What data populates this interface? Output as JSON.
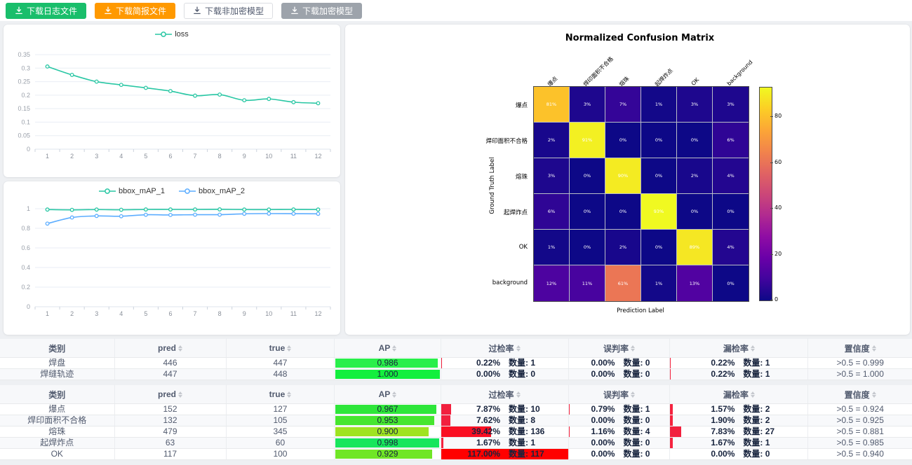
{
  "toolbar": {
    "buttons": [
      {
        "name": "download-log-button",
        "label": "下载日志文件",
        "bg": "#19be6b",
        "fg": "#ffffff",
        "border": "#19be6b"
      },
      {
        "name": "download-report-button",
        "label": "下载简报文件",
        "bg": "#ff9900",
        "fg": "#ffffff",
        "border": "#ff9900"
      },
      {
        "name": "download-plain-model-button",
        "label": "下载非加密模型",
        "bg": "#ffffff",
        "fg": "#515a6e",
        "border": "#dcdee2"
      },
      {
        "name": "download-encrypted-model-button",
        "label": "下载加密模型",
        "bg": "#9da3ab",
        "fg": "#ffffff",
        "border": "#9da3ab"
      }
    ]
  },
  "chart_data": [
    {
      "type": "line",
      "title": "loss",
      "x": [
        1,
        2,
        3,
        4,
        5,
        6,
        7,
        8,
        9,
        10,
        11,
        12
      ],
      "yticks": [
        0,
        0.05,
        0.1,
        0.15,
        0.2,
        0.25,
        0.3,
        0.35
      ],
      "ymax": 0.35,
      "grid": true,
      "legend_position": "top",
      "series": [
        {
          "name": "loss",
          "color": "#29c7a4",
          "values": [
            0.306,
            0.275,
            0.25,
            0.238,
            0.227,
            0.215,
            0.198,
            0.202,
            0.181,
            0.186,
            0.174,
            0.17
          ]
        }
      ]
    },
    {
      "type": "line",
      "title": "bbox_mAP",
      "x": [
        1,
        2,
        3,
        4,
        5,
        6,
        7,
        8,
        9,
        10,
        11,
        12
      ],
      "yticks": [
        0,
        0.2,
        0.4,
        0.6,
        0.8,
        1
      ],
      "ymax": 1,
      "grid": true,
      "legend_position": "top",
      "series": [
        {
          "name": "bbox_mAP_1",
          "color": "#29c7a4",
          "values": [
            0.991,
            0.988,
            0.991,
            0.989,
            0.992,
            0.992,
            0.992,
            0.993,
            0.991,
            0.991,
            0.992,
            0.991
          ]
        },
        {
          "name": "bbox_mAP_2",
          "color": "#5cadff",
          "values": [
            0.848,
            0.91,
            0.926,
            0.923,
            0.938,
            0.936,
            0.939,
            0.939,
            0.948,
            0.95,
            0.949,
            0.948
          ]
        }
      ]
    },
    {
      "type": "heatmap",
      "title": "Normalized Confusion Matrix",
      "xlabel": "Prediction Label",
      "ylabel": "Ground Truth Label",
      "labels": [
        "爆点",
        "焊印面积不合格",
        "熔珠",
        "起焊炸点",
        "OK",
        "background"
      ],
      "matrix": [
        [
          81,
          3,
          7,
          1,
          3,
          3
        ],
        [
          2,
          91,
          0,
          0,
          0,
          6
        ],
        [
          3,
          0,
          90,
          0,
          2,
          4
        ],
        [
          6,
          0,
          0,
          93,
          0,
          0
        ],
        [
          1,
          0,
          2,
          0,
          89,
          4
        ],
        [
          12,
          11,
          61,
          1,
          13,
          0
        ]
      ],
      "unit": "%",
      "vmax": 93,
      "colormap": "plasma",
      "colorbar_ticks": [
        0,
        20,
        40,
        60,
        80
      ]
    }
  ],
  "tables": [
    {
      "headers": [
        {
          "label": "类别",
          "sortable": false
        },
        {
          "label": "pred",
          "sortable": true
        },
        {
          "label": "true",
          "sortable": true
        },
        {
          "label": "AP",
          "sortable": true
        },
        {
          "label": "过检率",
          "sortable": true
        },
        {
          "label": "误判率",
          "sortable": true
        },
        {
          "label": "漏检率",
          "sortable": true
        },
        {
          "label": "置信度",
          "sortable": true
        }
      ],
      "rows": [
        {
          "category": "焊盘",
          "pred": "446",
          "gt": "447",
          "ap": 0.986,
          "ap_text": "0.986",
          "ap_color": "#29ef4b",
          "rates": [
            {
              "rate": "0.22%",
              "value": 0.22,
              "count": "1",
              "color": "#f5233f"
            },
            {
              "rate": "0.00%",
              "value": 0,
              "count": "0",
              "color": "#f5233f"
            },
            {
              "rate": "0.22%",
              "value": 0.22,
              "count": "1",
              "color": "#f5233f"
            }
          ],
          "confidence": ">0.5 = 0.999"
        },
        {
          "category": "焊缝轨迹",
          "pred": "447",
          "gt": "448",
          "ap": 1.0,
          "ap_text": "1.000",
          "ap_color": "#13ef3e",
          "rates": [
            {
              "rate": "0.00%",
              "value": 0,
              "count": "0",
              "color": "#f5233f"
            },
            {
              "rate": "0.00%",
              "value": 0,
              "count": "0",
              "color": "#f5233f"
            },
            {
              "rate": "0.22%",
              "value": 0.22,
              "count": "1",
              "color": "#f5233f"
            }
          ],
          "confidence": ">0.5 = 1.000"
        }
      ]
    },
    {
      "headers": [
        {
          "label": "类别",
          "sortable": false
        },
        {
          "label": "pred",
          "sortable": true
        },
        {
          "label": "true",
          "sortable": true
        },
        {
          "label": "AP",
          "sortable": true
        },
        {
          "label": "过检率",
          "sortable": true
        },
        {
          "label": "误判率",
          "sortable": true
        },
        {
          "label": "漏检率",
          "sortable": true
        },
        {
          "label": "置信度",
          "sortable": true
        }
      ],
      "rows": [
        {
          "category": "爆点",
          "pred": "152",
          "gt": "127",
          "ap": 0.967,
          "ap_text": "0.967",
          "ap_color": "#2ee63a",
          "rates": [
            {
              "rate": "7.87%",
              "value": 7.87,
              "count": "10",
              "color": "#f2203e"
            },
            {
              "rate": "0.79%",
              "value": 0.79,
              "count": "1",
              "color": "#f5233f"
            },
            {
              "rate": "1.57%",
              "value": 1.57,
              "count": "2",
              "color": "#f5233f"
            }
          ],
          "confidence": ">0.5 = 0.924"
        },
        {
          "category": "焊印面积不合格",
          "pred": "132",
          "gt": "105",
          "ap": 0.953,
          "ap_text": "0.953",
          "ap_color": "#46e62f",
          "rates": [
            {
              "rate": "7.62%",
              "value": 7.62,
              "count": "8",
              "color": "#f2203e"
            },
            {
              "rate": "0.00%",
              "value": 0,
              "count": "0",
              "color": "#f5233f"
            },
            {
              "rate": "1.90%",
              "value": 1.9,
              "count": "2",
              "color": "#f5233f"
            }
          ],
          "confidence": ">0.5 = 0.925"
        },
        {
          "category": "熔珠",
          "pred": "479",
          "gt": "345",
          "ap": 0.9,
          "ap_text": "0.900",
          "ap_color": "#9fe321",
          "rates": [
            {
              "rate": "39.42%",
              "value": 39.42,
              "count": "136",
              "color": "#fa0f23"
            },
            {
              "rate": "1.16%",
              "value": 1.16,
              "count": "4",
              "color": "#f5233f"
            },
            {
              "rate": "7.83%",
              "value": 7.83,
              "count": "27",
              "color": "#f2203e"
            }
          ],
          "confidence": ">0.5 = 0.881"
        },
        {
          "category": "起焊炸点",
          "pred": "63",
          "gt": "60",
          "ap": 0.998,
          "ap_text": "0.998",
          "ap_color": "#17e65c",
          "rates": [
            {
              "rate": "1.67%",
              "value": 1.67,
              "count": "1",
              "color": "#f5233f"
            },
            {
              "rate": "0.00%",
              "value": 0,
              "count": "0",
              "color": "#f5233f"
            },
            {
              "rate": "1.67%",
              "value": 1.67,
              "count": "1",
              "color": "#f5233f"
            }
          ],
          "confidence": ">0.5 = 0.985"
        },
        {
          "category": "OK",
          "pred": "117",
          "gt": "100",
          "ap": 0.929,
          "ap_text": "0.929",
          "ap_color": "#70e626",
          "rates": [
            {
              "rate": "117.00%",
              "value": 117,
              "count": "117",
              "color": "#ff0000"
            },
            {
              "rate": "0.00%",
              "value": 0,
              "count": "0",
              "color": "#f5233f"
            },
            {
              "rate": "0.00%",
              "value": 0,
              "count": "0",
              "color": "#f5233f"
            }
          ],
          "confidence": ">0.5 = 0.940"
        }
      ]
    }
  ],
  "labels": {
    "count_prefix": "数量: "
  }
}
